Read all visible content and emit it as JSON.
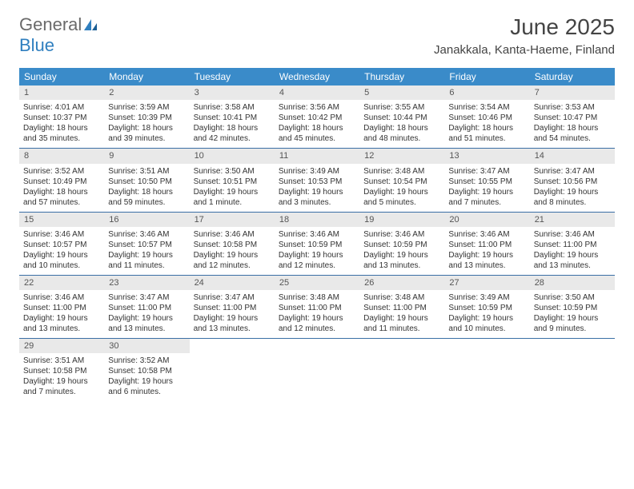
{
  "logo": {
    "word1": "General",
    "word2": "Blue"
  },
  "title": "June 2025",
  "location": "Janakkala, Kanta-Haeme, Finland",
  "colors": {
    "header_bg": "#3a8bc9",
    "header_text": "#ffffff",
    "daynum_bg": "#e9e9e9",
    "week_border": "#3a6fa5",
    "text": "#333333",
    "logo_gray": "#6a6a6a",
    "logo_blue": "#2f7fbf"
  },
  "day_names": [
    "Sunday",
    "Monday",
    "Tuesday",
    "Wednesday",
    "Thursday",
    "Friday",
    "Saturday"
  ],
  "weeks": [
    [
      {
        "n": "1",
        "sr": "Sunrise: 4:01 AM",
        "ss": "Sunset: 10:37 PM",
        "dl": "Daylight: 18 hours and 35 minutes."
      },
      {
        "n": "2",
        "sr": "Sunrise: 3:59 AM",
        "ss": "Sunset: 10:39 PM",
        "dl": "Daylight: 18 hours and 39 minutes."
      },
      {
        "n": "3",
        "sr": "Sunrise: 3:58 AM",
        "ss": "Sunset: 10:41 PM",
        "dl": "Daylight: 18 hours and 42 minutes."
      },
      {
        "n": "4",
        "sr": "Sunrise: 3:56 AM",
        "ss": "Sunset: 10:42 PM",
        "dl": "Daylight: 18 hours and 45 minutes."
      },
      {
        "n": "5",
        "sr": "Sunrise: 3:55 AM",
        "ss": "Sunset: 10:44 PM",
        "dl": "Daylight: 18 hours and 48 minutes."
      },
      {
        "n": "6",
        "sr": "Sunrise: 3:54 AM",
        "ss": "Sunset: 10:46 PM",
        "dl": "Daylight: 18 hours and 51 minutes."
      },
      {
        "n": "7",
        "sr": "Sunrise: 3:53 AM",
        "ss": "Sunset: 10:47 PM",
        "dl": "Daylight: 18 hours and 54 minutes."
      }
    ],
    [
      {
        "n": "8",
        "sr": "Sunrise: 3:52 AM",
        "ss": "Sunset: 10:49 PM",
        "dl": "Daylight: 18 hours and 57 minutes."
      },
      {
        "n": "9",
        "sr": "Sunrise: 3:51 AM",
        "ss": "Sunset: 10:50 PM",
        "dl": "Daylight: 18 hours and 59 minutes."
      },
      {
        "n": "10",
        "sr": "Sunrise: 3:50 AM",
        "ss": "Sunset: 10:51 PM",
        "dl": "Daylight: 19 hours and 1 minute."
      },
      {
        "n": "11",
        "sr": "Sunrise: 3:49 AM",
        "ss": "Sunset: 10:53 PM",
        "dl": "Daylight: 19 hours and 3 minutes."
      },
      {
        "n": "12",
        "sr": "Sunrise: 3:48 AM",
        "ss": "Sunset: 10:54 PM",
        "dl": "Daylight: 19 hours and 5 minutes."
      },
      {
        "n": "13",
        "sr": "Sunrise: 3:47 AM",
        "ss": "Sunset: 10:55 PM",
        "dl": "Daylight: 19 hours and 7 minutes."
      },
      {
        "n": "14",
        "sr": "Sunrise: 3:47 AM",
        "ss": "Sunset: 10:56 PM",
        "dl": "Daylight: 19 hours and 8 minutes."
      }
    ],
    [
      {
        "n": "15",
        "sr": "Sunrise: 3:46 AM",
        "ss": "Sunset: 10:57 PM",
        "dl": "Daylight: 19 hours and 10 minutes."
      },
      {
        "n": "16",
        "sr": "Sunrise: 3:46 AM",
        "ss": "Sunset: 10:57 PM",
        "dl": "Daylight: 19 hours and 11 minutes."
      },
      {
        "n": "17",
        "sr": "Sunrise: 3:46 AM",
        "ss": "Sunset: 10:58 PM",
        "dl": "Daylight: 19 hours and 12 minutes."
      },
      {
        "n": "18",
        "sr": "Sunrise: 3:46 AM",
        "ss": "Sunset: 10:59 PM",
        "dl": "Daylight: 19 hours and 12 minutes."
      },
      {
        "n": "19",
        "sr": "Sunrise: 3:46 AM",
        "ss": "Sunset: 10:59 PM",
        "dl": "Daylight: 19 hours and 13 minutes."
      },
      {
        "n": "20",
        "sr": "Sunrise: 3:46 AM",
        "ss": "Sunset: 11:00 PM",
        "dl": "Daylight: 19 hours and 13 minutes."
      },
      {
        "n": "21",
        "sr": "Sunrise: 3:46 AM",
        "ss": "Sunset: 11:00 PM",
        "dl": "Daylight: 19 hours and 13 minutes."
      }
    ],
    [
      {
        "n": "22",
        "sr": "Sunrise: 3:46 AM",
        "ss": "Sunset: 11:00 PM",
        "dl": "Daylight: 19 hours and 13 minutes."
      },
      {
        "n": "23",
        "sr": "Sunrise: 3:47 AM",
        "ss": "Sunset: 11:00 PM",
        "dl": "Daylight: 19 hours and 13 minutes."
      },
      {
        "n": "24",
        "sr": "Sunrise: 3:47 AM",
        "ss": "Sunset: 11:00 PM",
        "dl": "Daylight: 19 hours and 13 minutes."
      },
      {
        "n": "25",
        "sr": "Sunrise: 3:48 AM",
        "ss": "Sunset: 11:00 PM",
        "dl": "Daylight: 19 hours and 12 minutes."
      },
      {
        "n": "26",
        "sr": "Sunrise: 3:48 AM",
        "ss": "Sunset: 11:00 PM",
        "dl": "Daylight: 19 hours and 11 minutes."
      },
      {
        "n": "27",
        "sr": "Sunrise: 3:49 AM",
        "ss": "Sunset: 10:59 PM",
        "dl": "Daylight: 19 hours and 10 minutes."
      },
      {
        "n": "28",
        "sr": "Sunrise: 3:50 AM",
        "ss": "Sunset: 10:59 PM",
        "dl": "Daylight: 19 hours and 9 minutes."
      }
    ],
    [
      {
        "n": "29",
        "sr": "Sunrise: 3:51 AM",
        "ss": "Sunset: 10:58 PM",
        "dl": "Daylight: 19 hours and 7 minutes."
      },
      {
        "n": "30",
        "sr": "Sunrise: 3:52 AM",
        "ss": "Sunset: 10:58 PM",
        "dl": "Daylight: 19 hours and 6 minutes."
      },
      null,
      null,
      null,
      null,
      null
    ]
  ]
}
